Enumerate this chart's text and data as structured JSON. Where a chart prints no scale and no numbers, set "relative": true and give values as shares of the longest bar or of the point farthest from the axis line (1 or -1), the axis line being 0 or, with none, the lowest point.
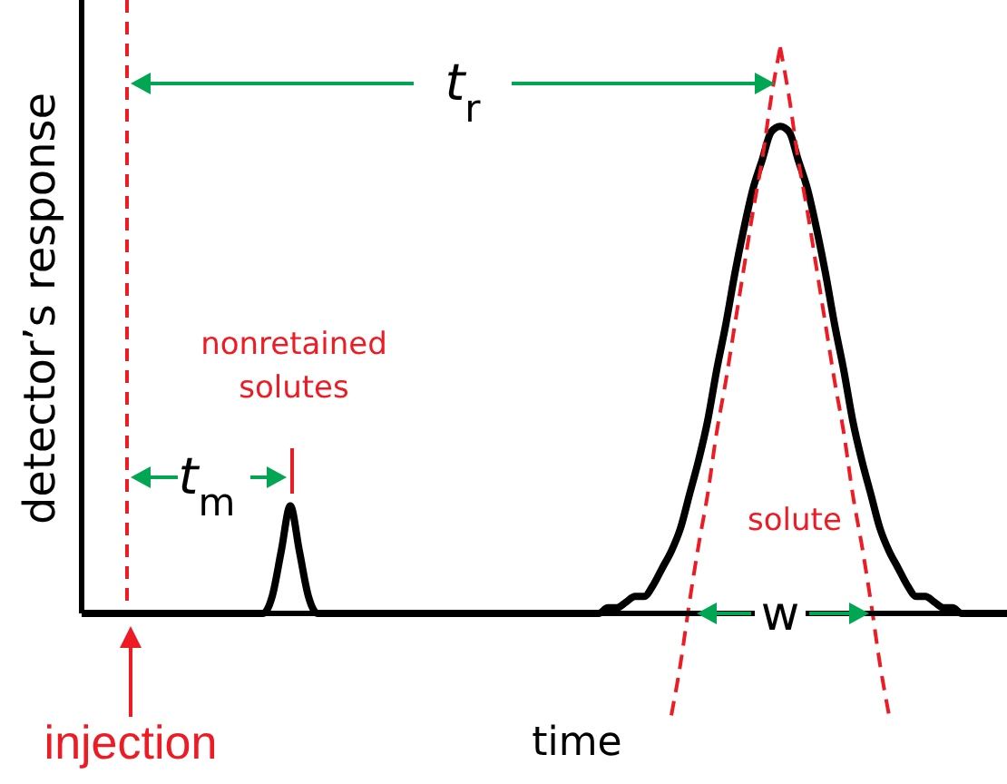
{
  "chart_data": {
    "type": "line",
    "relative": true,
    "xlabel": "time",
    "ylabel": "detector’s response",
    "categories": [
      null,
      null,
      null,
      null,
      null,
      null,
      null,
      null,
      null,
      null,
      null,
      null,
      null,
      null,
      null,
      null,
      null,
      null,
      null,
      null,
      null,
      null,
      null,
      null,
      null,
      null,
      null,
      null,
      null,
      null,
      null,
      null,
      null,
      null,
      null,
      null,
      null,
      null,
      null,
      null,
      null,
      null,
      null,
      null,
      null,
      null,
      null,
      null,
      null,
      null,
      null,
      null,
      null,
      null,
      null,
      null,
      null,
      null,
      null,
      null,
      null,
      null,
      null,
      null,
      null,
      null,
      null,
      null,
      null,
      null,
      null,
      null,
      null,
      null,
      null,
      null,
      null,
      null,
      null,
      null,
      null,
      null,
      null,
      null,
      null,
      null,
      null,
      null,
      null,
      null,
      null,
      null,
      null,
      null,
      null,
      null,
      null,
      null,
      null,
      null,
      null,
      null,
      null
    ],
    "series": [
      {
        "color": "#000000",
        "values": [
          0,
          0,
          0,
          0,
          0,
          0,
          0,
          0,
          0,
          0,
          0,
          0,
          0,
          0,
          0,
          0,
          0,
          0,
          0,
          0,
          0,
          0.03,
          0.11,
          0.19,
          0.11,
          0.03,
          0,
          0,
          0,
          0,
          0,
          0,
          0,
          0,
          0,
          0,
          0,
          0,
          0,
          0,
          0,
          0,
          0,
          0,
          0,
          0,
          0,
          0,
          0,
          0,
          0,
          0,
          0,
          0,
          0,
          0,
          0,
          0,
          0.01,
          0.01,
          0.02,
          0.03,
          0.03,
          0.05,
          0.08,
          0.11,
          0.15,
          0.21,
          0.27,
          0.34,
          0.43,
          0.51,
          0.6,
          0.68,
          0.75,
          0.8,
          0.85,
          0.86,
          0.85,
          0.8,
          0.75,
          0.68,
          0.6,
          0.51,
          0.43,
          0.34,
          0.27,
          0.21,
          0.15,
          0.11,
          0.08,
          0.05,
          0.03,
          0.03,
          0.02,
          0.01,
          0.01,
          0,
          0,
          0,
          0,
          0,
          0
        ]
      },
      {
        "color": "#ed1c24",
        "line_style": "dashed",
        "values": [
          null,
          null,
          null,
          null,
          null,
          null,
          null,
          null,
          null,
          null,
          null,
          null,
          null,
          null,
          null,
          null,
          null,
          null,
          null,
          null,
          null,
          null,
          null,
          null,
          null,
          null,
          null,
          null,
          null,
          null,
          null,
          null,
          null,
          null,
          null,
          null,
          null,
          null,
          null,
          null,
          null,
          null,
          null,
          null,
          null,
          null,
          null,
          null,
          null,
          null,
          null,
          null,
          null,
          null,
          null,
          null,
          null,
          null,
          null,
          null,
          null,
          null,
          null,
          null,
          null,
          -0.18,
          -0.09,
          0.02,
          0.12,
          0.21,
          0.32,
          0.41,
          0.51,
          0.61,
          0.71,
          0.8,
          0.91,
          1,
          null,
          null,
          null,
          null,
          null,
          null,
          null,
          null,
          null,
          null,
          null,
          null,
          null,
          null,
          null,
          null,
          null,
          null,
          null,
          null,
          null,
          null,
          null,
          null,
          null
        ]
      },
      {
        "color": "#ed1c24",
        "line_style": "dashed",
        "values": [
          null,
          null,
          null,
          null,
          null,
          null,
          null,
          null,
          null,
          null,
          null,
          null,
          null,
          null,
          null,
          null,
          null,
          null,
          null,
          null,
          null,
          null,
          null,
          null,
          null,
          null,
          null,
          null,
          null,
          null,
          null,
          null,
          null,
          null,
          null,
          null,
          null,
          null,
          null,
          null,
          null,
          null,
          null,
          null,
          null,
          null,
          null,
          null,
          null,
          null,
          null,
          null,
          null,
          null,
          null,
          null,
          null,
          null,
          null,
          null,
          null,
          null,
          null,
          null,
          null,
          null,
          null,
          null,
          null,
          null,
          null,
          null,
          null,
          null,
          null,
          null,
          null,
          1,
          0.91,
          0.8,
          0.71,
          0.61,
          0.51,
          0.41,
          0.32,
          0.21,
          0.12,
          0.02,
          -0.09,
          -0.18,
          null,
          null,
          null,
          null,
          null,
          null,
          null,
          null,
          null,
          null,
          null,
          null,
          null
        ]
      }
    ],
    "annotations": [
      "t$_{r}$",
      "t$_{m}$",
      "w",
      "nonretained solutes",
      "solute",
      "injection"
    ]
  }
}
